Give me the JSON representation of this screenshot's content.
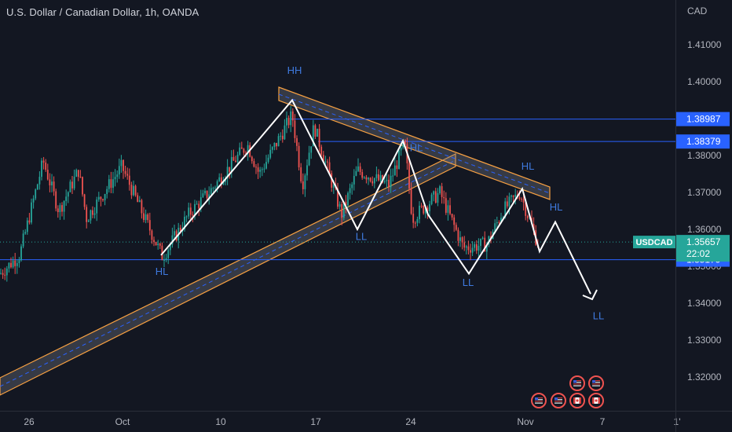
{
  "header": {
    "title": "U.S. Dollar / Canadian Dollar, 1h, OANDA"
  },
  "axis": {
    "currency": "CAD"
  },
  "chart_data": {
    "type": "candlestick",
    "symbol": "USDCAD",
    "x_ticks": [
      "26",
      "Oct",
      "10",
      "17",
      "24",
      "Nov",
      "7",
      "1'"
    ],
    "y_ticks": [
      "1.41000",
      "1.40000",
      "1.39000",
      "1.38000",
      "1.37000",
      "1.36000",
      "1.35000",
      "1.34000",
      "1.33000",
      "1.32000"
    ],
    "y_tick_values": [
      1.41,
      1.4,
      1.39,
      1.38,
      1.37,
      1.36,
      1.35,
      1.34,
      1.33,
      1.32
    ],
    "ylim": [
      1.3066,
      1.4214
    ],
    "price_levels": [
      {
        "label": "1.38987",
        "value": 1.38987
      },
      {
        "label": "1.38379",
        "value": 1.38379
      },
      {
        "label": "1.35179",
        "value": 1.35179
      }
    ],
    "current_price": {
      "symbol": "USDCAD",
      "label": "1.35657",
      "value": 1.35657,
      "countdown": "22:02"
    },
    "annotations": [
      {
        "text": "HH",
        "price": 1.403
      },
      {
        "text": "HL",
        "price": 1.382
      },
      {
        "text": "HL",
        "price": 1.377
      },
      {
        "text": "HL",
        "price": 1.366
      },
      {
        "text": "HL",
        "price": 1.3485
      },
      {
        "text": "LL",
        "price": 1.358
      },
      {
        "text": "LL",
        "price": 1.3455
      },
      {
        "text": "LL",
        "price": 1.3365
      }
    ],
    "zigzag": [
      1.353,
      1.395,
      1.36,
      1.384,
      1.364,
      1.348,
      1.371,
      1.354,
      1.362,
      1.3425
    ],
    "colors": {
      "up": "#26a69a",
      "down": "#ef5350",
      "level": "#2962ff",
      "channel": "#f7a041",
      "annotation": "#3f7ae0",
      "current": "#26a69a"
    },
    "grid": false
  }
}
